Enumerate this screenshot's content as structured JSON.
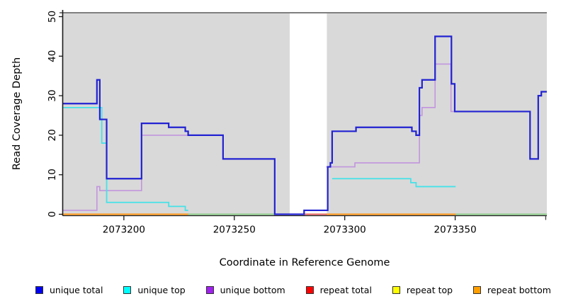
{
  "chart_data": {
    "type": "line",
    "subtype": "step-coverage-plot",
    "title": "",
    "xlabel": "Coordinate in Reference Genome",
    "ylabel": "Read Coverage Depth",
    "xlim": [
      2073172.3,
      2073391.5
    ],
    "ylim": [
      0,
      50
    ],
    "xticks": [
      2073200,
      2073250,
      2073300,
      2073350
    ],
    "xticks_unlabeled": [
      2073391
    ],
    "yticks": [
      0,
      10,
      20,
      30,
      40,
      50
    ],
    "grid": false,
    "legend_position": "bottom",
    "plot_background": "#d9d9d9",
    "plot_top_border_color": "#7f7f7f",
    "masked_region": {
      "x0": 2073275.1,
      "x1": 2073291.9,
      "color": "#ffffff"
    },
    "series": [
      {
        "name": "repeat top",
        "group": "repeat",
        "color": "#f5e900",
        "width": 1.6,
        "skip_zero": false,
        "points": [
          [
            2073172.3,
            0
          ]
        ]
      },
      {
        "name": "repeat total",
        "group": "repeat",
        "color": "#e0506e",
        "width": 1.6,
        "skip_zero": false,
        "points": [
          [
            2073172.3,
            0
          ]
        ]
      },
      {
        "name": "repeat bottom",
        "group": "repeat",
        "color": "#ff9514",
        "width": 2,
        "skip_zero": false,
        "points": [
          [
            2073172.3,
            0
          ]
        ]
      },
      {
        "name": "unique bottom",
        "group": "unique",
        "color": "#c195dd",
        "width": 1.6,
        "skip_zero": true,
        "points": [
          [
            2073172.3,
            1
          ],
          [
            2073187.8,
            7
          ],
          [
            2073189.1,
            6
          ],
          [
            2073208,
            20
          ],
          [
            2073244.9,
            14
          ],
          [
            2073268.3,
            0
          ],
          [
            2073291.6,
            12
          ],
          [
            2073304.6,
            13
          ],
          [
            2073333.8,
            25
          ],
          [
            2073335,
            27
          ],
          [
            2073340.9,
            38
          ],
          [
            2073348.1,
            26
          ],
          [
            2073383.9,
            14
          ],
          [
            2073387.6,
            30
          ],
          [
            2073389,
            31
          ]
        ]
      },
      {
        "name": "unique top",
        "group": "unique",
        "color": "#45e2e8",
        "width": 1.8,
        "skip_zero": true,
        "points": [
          [
            2073172.3,
            27
          ],
          [
            2073190,
            18
          ],
          [
            2073192.2,
            3
          ],
          [
            2073220.3,
            2
          ],
          [
            2073227.8,
            1
          ],
          [
            2073229.1,
            0
          ],
          [
            2073294.3,
            9
          ],
          [
            2073329.9,
            8
          ],
          [
            2073332.3,
            7
          ],
          [
            2073350.2,
            0
          ]
        ]
      },
      {
        "name": "unique total",
        "group": "unique",
        "color": "#2222d2",
        "width": 2.2,
        "skip_zero": false,
        "points": [
          [
            2073172.3,
            28
          ],
          [
            2073187.8,
            34
          ],
          [
            2073189.1,
            24
          ],
          [
            2073192.2,
            9
          ],
          [
            2073208,
            23
          ],
          [
            2073220.3,
            22
          ],
          [
            2073227.8,
            21
          ],
          [
            2073229.1,
            20
          ],
          [
            2073244.9,
            14
          ],
          [
            2073268.3,
            0
          ],
          [
            2073281.6,
            1
          ],
          [
            2073292.3,
            12
          ],
          [
            2073293.5,
            13
          ],
          [
            2073294.3,
            21
          ],
          [
            2073305.1,
            22
          ],
          [
            2073330.4,
            21
          ],
          [
            2073332.3,
            20
          ],
          [
            2073333.8,
            32
          ],
          [
            2073335,
            34
          ],
          [
            2073340.9,
            45
          ],
          [
            2073348.3,
            33
          ],
          [
            2073349.8,
            26
          ],
          [
            2073383.9,
            14
          ],
          [
            2073387.6,
            30
          ],
          [
            2073389,
            31
          ]
        ]
      }
    ],
    "baseline_overlay_segments": [
      {
        "x0": 2073229.1,
        "x1": 2073268.3,
        "color": "#8ecf8b",
        "width": 2
      },
      {
        "x0": 2073350.2,
        "x1": 2073391.5,
        "color": "#8ecf8b",
        "width": 2
      },
      {
        "x0": 2073281.6,
        "x1": 2073291.9,
        "color": "#e0506e",
        "width": 1.6
      }
    ]
  },
  "legend": {
    "items": [
      {
        "label": "unique total",
        "color": "#0000f0"
      },
      {
        "label": "unique top",
        "color": "#00ffff"
      },
      {
        "label": "unique bottom",
        "color": "#a020f0"
      },
      {
        "label": "repeat total",
        "color": "#ff0000"
      },
      {
        "label": "repeat top",
        "color": "#ffff00"
      },
      {
        "label": "repeat bottom",
        "color": "#ffa000"
      }
    ]
  }
}
